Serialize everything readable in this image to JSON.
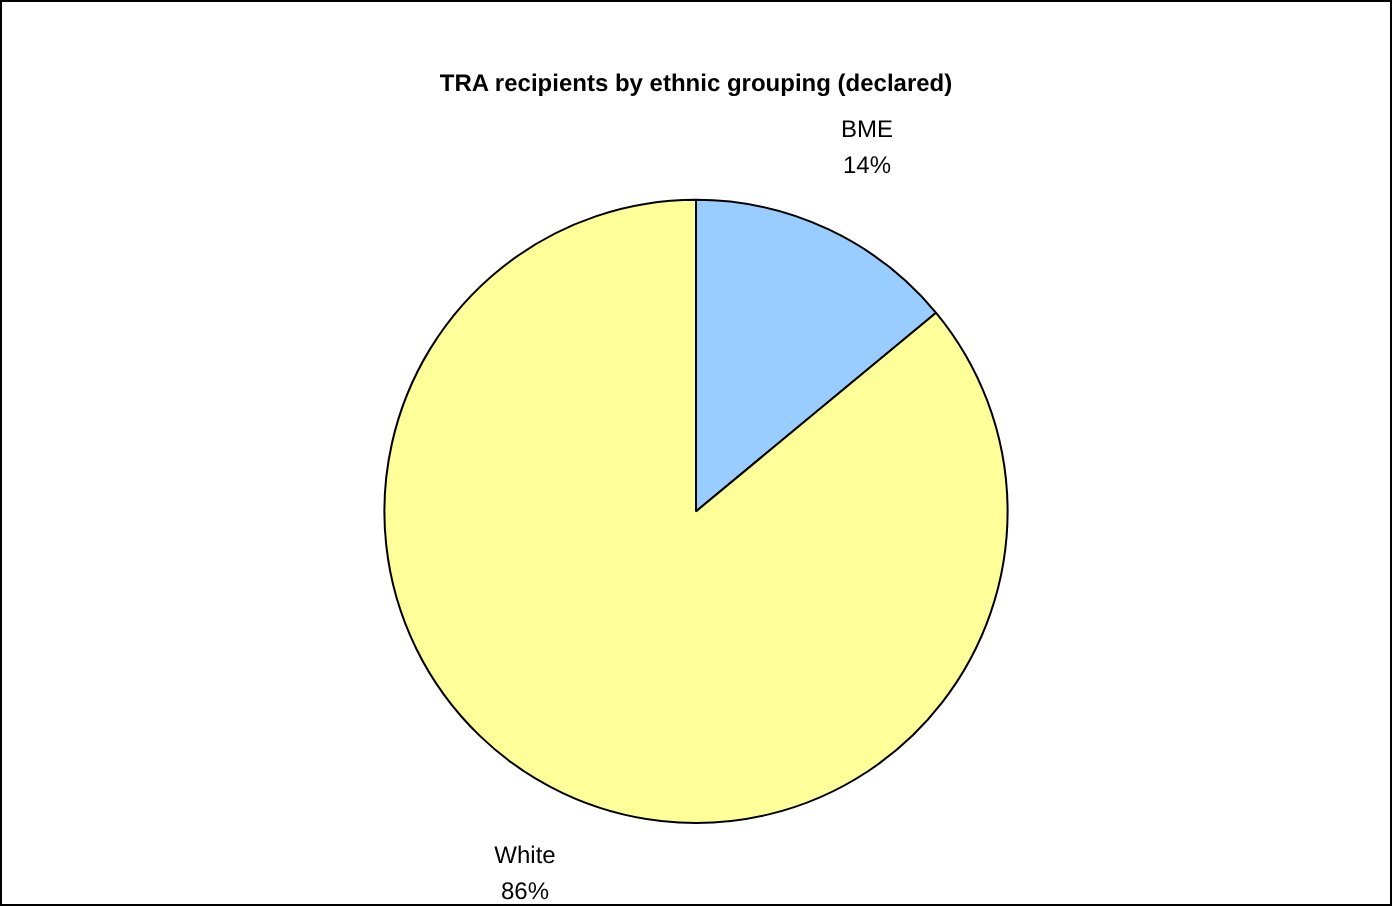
{
  "chart_data": {
    "type": "pie",
    "title": "TRA recipients by ethnic grouping (declared)",
    "categories": [
      "BME",
      "White"
    ],
    "values": [
      14,
      86
    ],
    "colors": [
      "#99ccff",
      "#ffff99"
    ],
    "value_labels": [
      "14%",
      "86%"
    ],
    "legend": false
  }
}
